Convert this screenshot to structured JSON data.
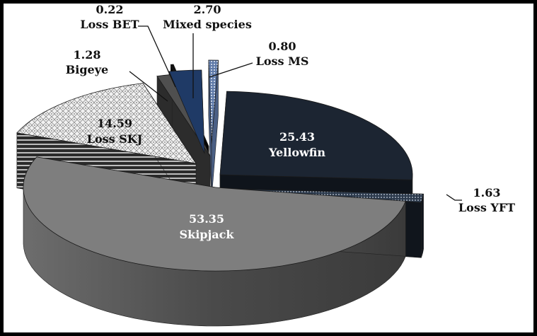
{
  "chart_data": {
    "type": "pie",
    "style": "3d-exploded",
    "slices": [
      {
        "label": "Yellowfin",
        "value": 25.43,
        "color": "#1c2532",
        "label_pos": "inside",
        "value_text": "25.43"
      },
      {
        "label": "Loss YFT",
        "value": 1.63,
        "color": "#2a3644",
        "pattern": "dots",
        "label_pos": "outside",
        "value_text": "1.63"
      },
      {
        "label": "Skipjack",
        "value": 53.35,
        "color": "#808080",
        "label_pos": "inside",
        "value_text": "53.35"
      },
      {
        "label": "Loss SKJ",
        "value": 14.59,
        "color": "#e8e8e8",
        "pattern": "diamond-crosshatch",
        "label_pos": "inside",
        "value_text": "14.59"
      },
      {
        "label": "Bigeye",
        "value": 1.28,
        "color": "#555555",
        "label_pos": "outside",
        "value_text": "1.28"
      },
      {
        "label": "Loss BET",
        "value": 0.22,
        "color": "#111111",
        "label_pos": "outside",
        "value_text": "0.22"
      },
      {
        "label": "Mixed species",
        "value": 2.7,
        "color": "#1f3a66",
        "label_pos": "outside",
        "value_text": "2.70"
      },
      {
        "label": "Loss MS",
        "value": 0.8,
        "color": "#8fa3c7",
        "pattern": "dots",
        "label_pos": "outside",
        "value_text": "0.80"
      }
    ],
    "legend": "none",
    "title": ""
  }
}
